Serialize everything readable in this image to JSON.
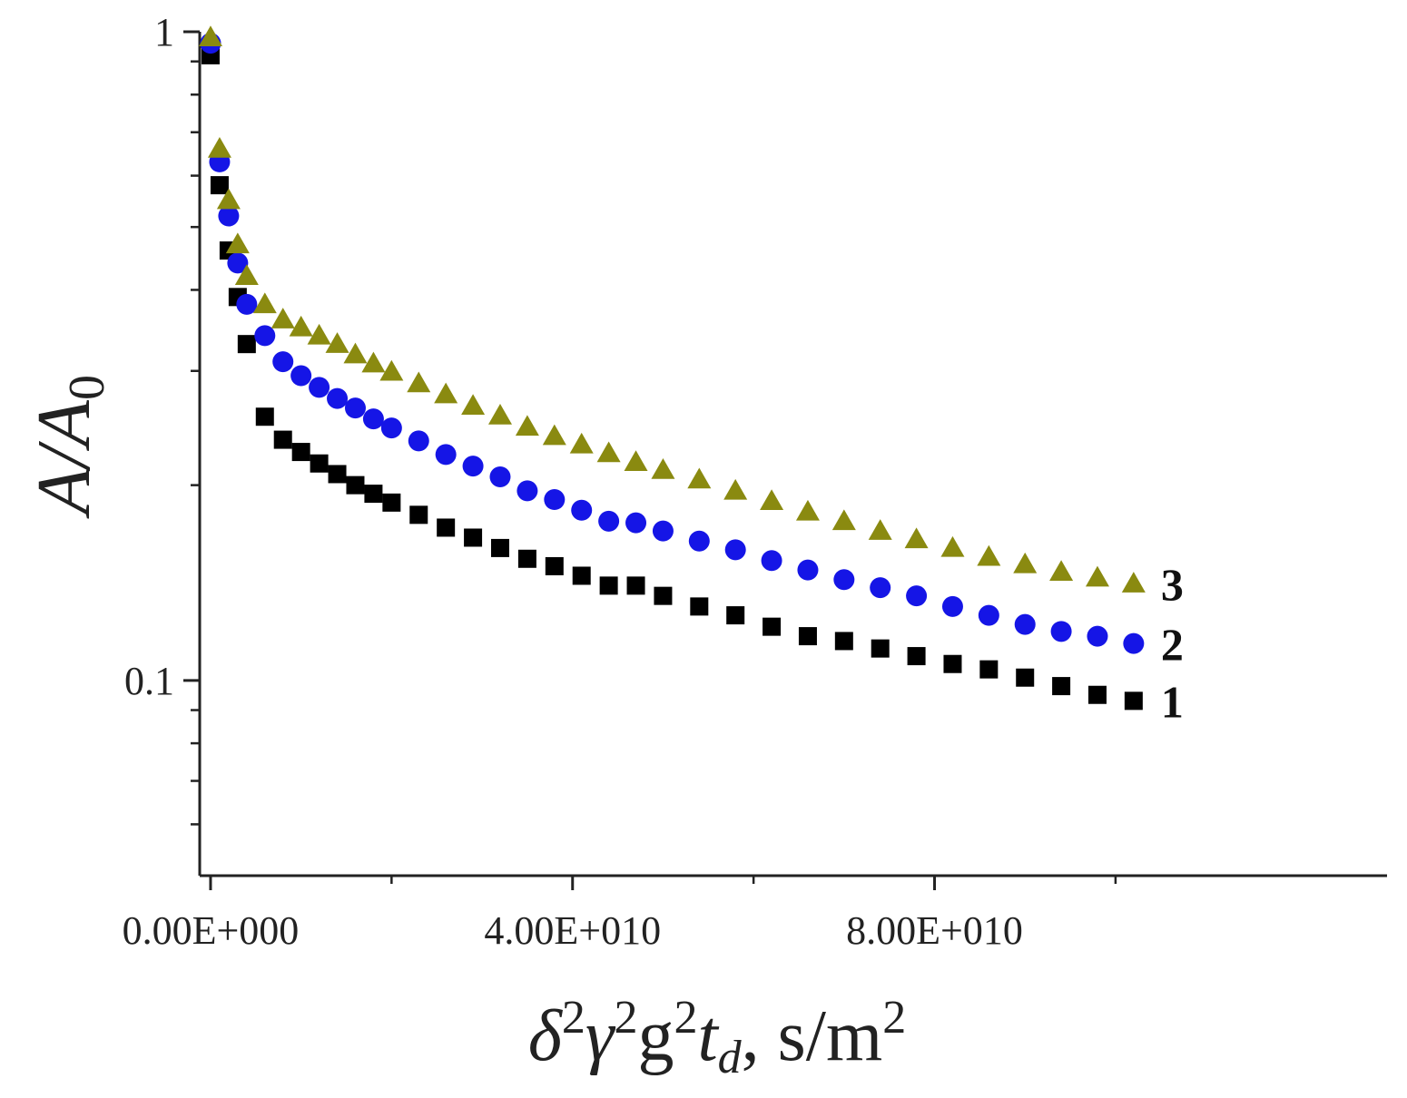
{
  "chart_data": {
    "type": "scatter",
    "title": "",
    "xlabel": {
      "main": "δ",
      "sup1": "2",
      "gamma": "γ",
      "sup2": "2",
      "g": "g",
      "sup3": "2",
      "t": "t",
      "sub": "d",
      "units": ", s/m",
      "sup4": "2"
    },
    "ylabel": {
      "main": "A/A",
      "sub": "0"
    },
    "xlim": [
      -1200000000.0,
      130000000000.0
    ],
    "ylim": [
      0.05,
      1.0
    ],
    "yscale": "log",
    "x_ticks": [
      {
        "value": 0,
        "label": "0.00E+000"
      },
      {
        "value": 40000000000,
        "label": "4.00E+010"
      },
      {
        "value": 80000000000,
        "label": "8.00E+010"
      }
    ],
    "x_minor_ticks": [
      20000000000,
      60000000000,
      100000000000
    ],
    "y_ticks": [
      {
        "value": 1,
        "label": "1"
      },
      {
        "value": 0.1,
        "label": "0.1"
      }
    ],
    "series": [
      {
        "name": "1",
        "marker": "square",
        "color": "#000000",
        "x": [
          0,
          1000000000,
          2000000000,
          3000000000,
          4000000000,
          6000000000,
          8000000000,
          10000000000,
          12000000000,
          14000000000,
          16000000000,
          18000000000,
          20000000000,
          23000000000,
          26000000000,
          29000000000,
          32000000000,
          35000000000,
          38000000000,
          41000000000,
          44000000000,
          47000000000,
          50000000000,
          54000000000,
          58000000000,
          62000000000,
          66000000000,
          70000000000,
          74000000000,
          78000000000,
          82000000000,
          86000000000,
          90000000000,
          94000000000,
          98000000000,
          102000000000
        ],
        "values": [
          0.92,
          0.58,
          0.46,
          0.39,
          0.33,
          0.255,
          0.235,
          0.225,
          0.216,
          0.208,
          0.2,
          0.194,
          0.188,
          0.18,
          0.172,
          0.166,
          0.16,
          0.154,
          0.15,
          0.145,
          0.14,
          0.14,
          0.135,
          0.13,
          0.126,
          0.121,
          0.117,
          0.115,
          0.112,
          0.109,
          0.106,
          0.104,
          0.101,
          0.098,
          0.095,
          0.093
        ]
      },
      {
        "name": "2",
        "marker": "circle",
        "color": "#1515e6",
        "x": [
          0,
          1000000000,
          2000000000,
          3000000000,
          4000000000,
          6000000000,
          8000000000,
          10000000000,
          12000000000,
          14000000000,
          16000000000,
          18000000000,
          20000000000,
          23000000000,
          26000000000,
          29000000000,
          32000000000,
          35000000000,
          38000000000,
          41000000000,
          44000000000,
          47000000000,
          50000000000,
          54000000000,
          58000000000,
          62000000000,
          66000000000,
          70000000000,
          74000000000,
          78000000000,
          82000000000,
          86000000000,
          90000000000,
          94000000000,
          98000000000,
          102000000000
        ],
        "values": [
          0.96,
          0.63,
          0.52,
          0.44,
          0.38,
          0.34,
          0.31,
          0.295,
          0.283,
          0.272,
          0.263,
          0.253,
          0.245,
          0.234,
          0.223,
          0.214,
          0.206,
          0.196,
          0.19,
          0.183,
          0.176,
          0.175,
          0.17,
          0.164,
          0.159,
          0.153,
          0.148,
          0.143,
          0.139,
          0.135,
          0.13,
          0.126,
          0.122,
          0.119,
          0.117,
          0.114
        ]
      },
      {
        "name": "3",
        "marker": "triangle",
        "color": "#8a8a10",
        "x": [
          0,
          1000000000,
          2000000000,
          3000000000,
          4000000000,
          6000000000,
          8000000000,
          10000000000,
          12000000000,
          14000000000,
          16000000000,
          18000000000,
          20000000000,
          23000000000,
          26000000000,
          29000000000,
          32000000000,
          35000000000,
          38000000000,
          41000000000,
          44000000000,
          47000000000,
          50000000000,
          54000000000,
          58000000000,
          62000000000,
          66000000000,
          70000000000,
          74000000000,
          78000000000,
          82000000000,
          86000000000,
          90000000000,
          94000000000,
          98000000000,
          102000000000
        ],
        "values": [
          0.98,
          0.66,
          0.55,
          0.47,
          0.42,
          0.38,
          0.36,
          0.35,
          0.34,
          0.33,
          0.318,
          0.308,
          0.299,
          0.287,
          0.276,
          0.265,
          0.256,
          0.246,
          0.238,
          0.231,
          0.224,
          0.217,
          0.211,
          0.204,
          0.196,
          0.189,
          0.182,
          0.176,
          0.17,
          0.165,
          0.16,
          0.155,
          0.151,
          0.147,
          0.144,
          0.141
        ]
      }
    ]
  }
}
